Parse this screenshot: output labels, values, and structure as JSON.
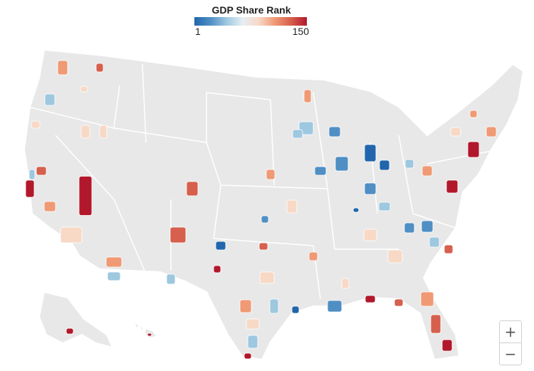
{
  "legend": {
    "title": "GDP Share Rank",
    "min_label": "1",
    "max_label": "150",
    "colors": [
      "#2166ac",
      "#4f8fc4",
      "#9dc8e0",
      "#e6eef3",
      "#f7d9c6",
      "#ef9a75",
      "#d6604d",
      "#b2182b"
    ]
  },
  "map": {
    "land_color": "#e8e8e8",
    "border_color": "#ffffff"
  },
  "zoom": {
    "in_label": "+",
    "out_label": "−"
  },
  "icons": [
    "plus-icon",
    "minus-icon"
  ]
}
